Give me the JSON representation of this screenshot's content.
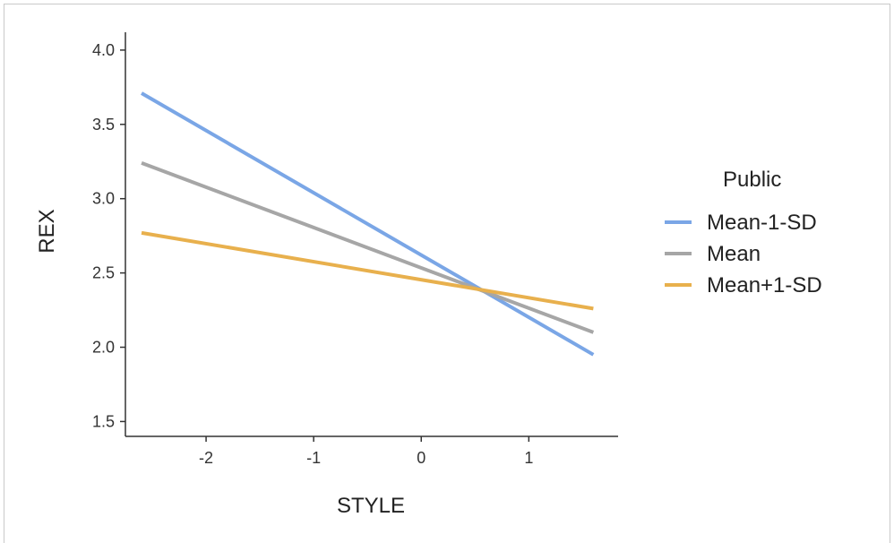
{
  "chart_data": {
    "type": "line",
    "title": "",
    "xlabel": "STYLE",
    "ylabel": "REX",
    "xlim": [
      -2.75,
      1.83
    ],
    "ylim": [
      1.4,
      4.12
    ],
    "xticks": [
      "-2",
      "-1",
      "0",
      "1"
    ],
    "xtick_values": [
      -2,
      -1,
      0,
      1
    ],
    "yticks": [
      "1.5",
      "2.0",
      "2.5",
      "3.0",
      "3.5",
      "4.0"
    ],
    "ytick_values": [
      1.5,
      2.0,
      2.5,
      3.0,
      3.5,
      4.0
    ],
    "grid": false,
    "legend": {
      "title": "Public",
      "placement": "right"
    },
    "series": [
      {
        "name": "Mean-1-SD",
        "color": "#7aa6e6",
        "x": [
          -2.6,
          1.6
        ],
        "y": [
          3.71,
          1.95
        ]
      },
      {
        "name": "Mean",
        "color": "#a6a6a6",
        "x": [
          -2.6,
          1.6
        ],
        "y": [
          3.24,
          2.1
        ]
      },
      {
        "name": "Mean+1-SD",
        "color": "#e8b04d",
        "x": [
          -2.6,
          1.6
        ],
        "y": [
          2.77,
          2.26
        ]
      }
    ]
  }
}
